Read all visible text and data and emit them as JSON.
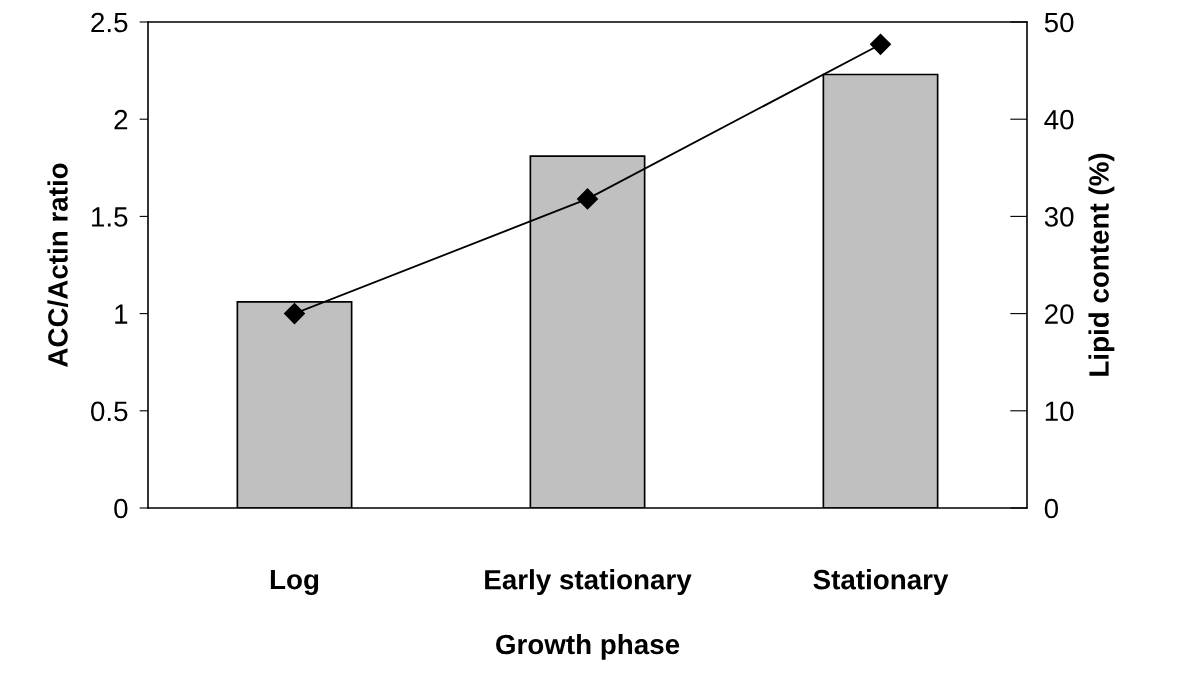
{
  "chart_data": {
    "type": "bar",
    "xlabel": "Growth phase",
    "ylabel": "ACC/Actin ratio",
    "y2label": "Lipid content (%)",
    "categories": [
      "Log",
      "Early stationary",
      "Stationary"
    ],
    "series": [
      {
        "color": "#c0c0c0",
        "values": [
          1.06,
          1.81,
          2.23
        ]
      },
      {
        "type": "line",
        "axis": "y2",
        "color": "#000000",
        "marker": "diamond",
        "line_style": "solid",
        "values": [
          20,
          31.8,
          47.7
        ]
      }
    ],
    "ylim": [
      0,
      2.5
    ],
    "yticks": [
      0,
      0.5,
      1,
      1.5,
      2,
      2.5
    ],
    "y2lim": [
      0,
      50
    ],
    "y2ticks": [
      0,
      10,
      20,
      30,
      40,
      50
    ],
    "grid": false,
    "legend": false
  }
}
